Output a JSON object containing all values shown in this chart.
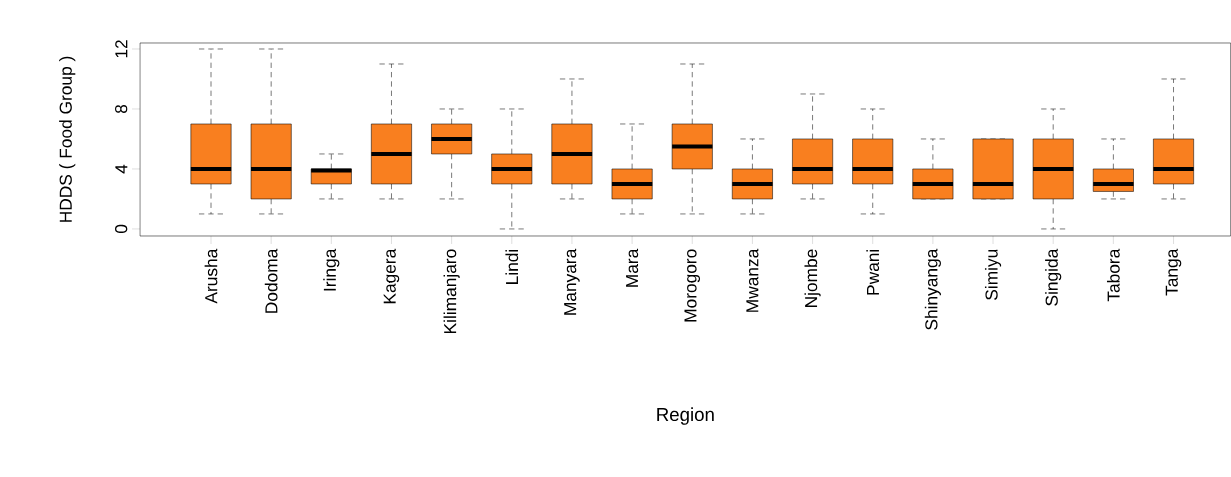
{
  "chart_data": {
    "type": "box",
    "xlabel": "Region",
    "ylabel": "HDDS ( Food Group )",
    "categories": [
      "Arusha",
      "Dodoma",
      "Iringa",
      "Kagera",
      "Kilimanjaro",
      "Lindi",
      "Manyara",
      "Mara",
      "Morogoro",
      "Mwanza",
      "Njombe",
      "Pwani",
      "Shinyanga",
      "Simiyu",
      "Singida",
      "Tabora",
      "Tanga"
    ],
    "color": "#f97f1f",
    "boxes": [
      {
        "low": 1,
        "q1": 3,
        "median": 4,
        "q3": 7,
        "high": 12
      },
      {
        "low": 1,
        "q1": 2,
        "median": 4,
        "q3": 7,
        "high": 12
      },
      {
        "low": 2,
        "q1": 3,
        "median": 3.9,
        "q3": 4,
        "high": 5
      },
      {
        "low": 2,
        "q1": 3,
        "median": 5,
        "q3": 7,
        "high": 11
      },
      {
        "low": 2,
        "q1": 5,
        "median": 6,
        "q3": 7,
        "high": 8
      },
      {
        "low": 0,
        "q1": 3,
        "median": 4,
        "q3": 5,
        "high": 8
      },
      {
        "low": 2,
        "q1": 3,
        "median": 5,
        "q3": 7,
        "high": 10
      },
      {
        "low": 1,
        "q1": 2,
        "median": 3,
        "q3": 4,
        "high": 7
      },
      {
        "low": 1,
        "q1": 4,
        "median": 5.5,
        "q3": 7,
        "high": 11
      },
      {
        "low": 1,
        "q1": 2,
        "median": 3,
        "q3": 4,
        "high": 6
      },
      {
        "low": 2,
        "q1": 3,
        "median": 4,
        "q3": 6,
        "high": 9
      },
      {
        "low": 1,
        "q1": 3,
        "median": 4,
        "q3": 6,
        "high": 8
      },
      {
        "low": 2,
        "q1": 2,
        "median": 3,
        "q3": 4,
        "high": 6
      },
      {
        "low": 2,
        "q1": 2,
        "median": 3,
        "q3": 6,
        "high": 6
      },
      {
        "low": 0,
        "q1": 2,
        "median": 4,
        "q3": 6,
        "high": 8
      },
      {
        "low": 2,
        "q1": 2.5,
        "median": 3,
        "q3": 4,
        "high": 6
      },
      {
        "low": 2,
        "q1": 3,
        "median": 4,
        "q3": 6,
        "high": 10
      }
    ],
    "ylim": [
      -0.47,
      12.4
    ],
    "yticks": [
      0,
      4,
      8,
      12
    ],
    "grid": false
  }
}
